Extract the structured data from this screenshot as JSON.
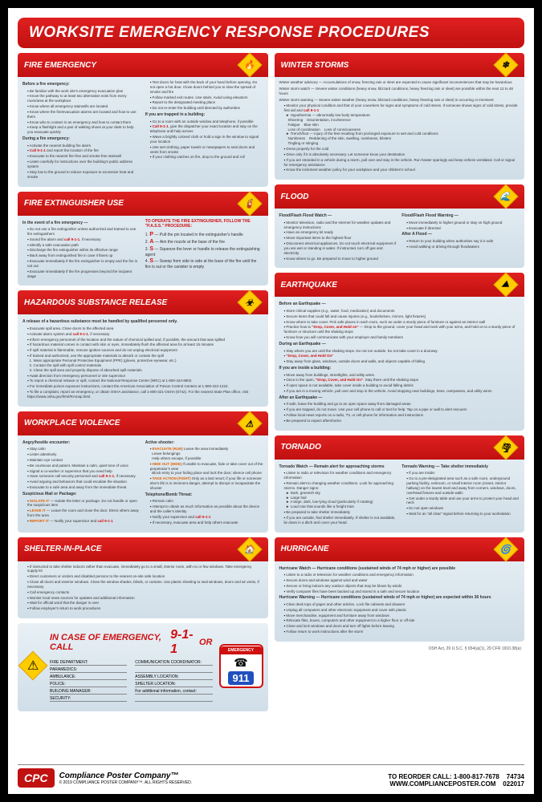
{
  "title": "WORKSITE EMERGENCY RESPONSE PROCEDURES",
  "sections_left": [
    {
      "title": "FIRE EMERGENCY",
      "icon": "🔥",
      "cols": [
        {
          "subhead": "Before a fire emergency:",
          "items": [
            "Be familiar with the work site's emergency evacuation plan",
            "Know the pathway to at least two alternative exits from every room/area at the workplace",
            "Know where all emergency stairwells are located",
            "Know where the fire/evacuation alarms are located and how to use them",
            "Know who to contact in an emergency and how to contact them",
            "Keep a flashlight and a pair of walking shoes at your desk to help you evacuate quickly"
          ],
          "subhead2": "During a fire emergency:",
          "items2": [
            "Activate the nearest building fire alarm",
            "<span class='red'>Call 9-1-1</span> and report the location of the fire",
            "Evacuate to the nearest fire-free and smoke-free stairwell",
            "Listen carefully for instructions over the building's public address system",
            "Stay low to the ground to reduce exposure to excessive heat and smoke"
          ]
        },
        {
          "items": [
            "Test doors for heat with the back of your hand before opening. Do not open a hot door. Close doors behind you to slow the spread of smoke and fire",
            "Follow marked exit routes. Use stairs. Avoid using elevators",
            "Report to the designated meeting place",
            "Do not re-enter the building until directed by authorities"
          ],
          "subhead2": "If you are trapped in a building:",
          "items2": [
            "Go to a room with an outside window and telephone, if possible",
            "<span class='red'>Call 9-1-1</span>, give the dispatcher your exact location and stay on the telephone until help arrives",
            "Wave a brightly colored cloth or hold a sign in the window to signal your location",
            "Use wet clothing, paper towels or newspapers to seal doors and vents from smoke",
            "If your clothing catches on fire, drop to the ground and roll"
          ]
        }
      ]
    },
    {
      "title": "FIRE EXTINGUISHER USE",
      "icon": "🧯",
      "cols": [
        {
          "subhead": "In the event of a fire emergency —",
          "items": [
            "Do not use a fire extinguisher unless authorized and trained to use fire extinguishers",
            "Sound fire alarm and <span class='red'>call 9-1-1</span>, if necessary",
            "Identify a safe evacuation path",
            "Discharge the fire extinguisher within its effective range",
            "Back away from extinguished fire in case it flares up",
            "Evacuate immediately if the fire extinguisher is empty and the fire is not out",
            "Evacuate immediately if the fire progresses beyond the incipient stage"
          ]
        },
        {
          "pass_heading": "TO OPERATE THE FIRE EXTINGUISHER, FOLLOW THE \"P.A.S.S.\" PROCEDURE:",
          "pass": [
            {
              "l": "P",
              "t": "— Pull the pin located in the extinguisher's handle"
            },
            {
              "l": "A",
              "t": "— Aim the nozzle at the base of the fire"
            },
            {
              "l": "S",
              "t": "— Squeeze the lever or handle to release the extinguishing agent"
            },
            {
              "l": "S",
              "t": "— Sweep from side to side at the base of the fire until the fire is out or the canister is empty"
            }
          ]
        }
      ]
    },
    {
      "title": "HAZARDOUS SUBSTANCE RELEASE",
      "icon": "☣",
      "body": {
        "subhead": "A release of a hazardous substance must be handled by qualified personnel only.",
        "items": [
          "Evacuate spill area. Close doors to the affected area",
          "Activate alarm system and <span class='red'>call 9-1-1</span>, if necessary",
          "Inform emergency personnel of the location and the nature of chemical spilled and, if possible, the amount that was spilled",
          "If hazardous material comes in contact with skin or eyes, immediately flush the affected area for at least 15 minutes",
          "If spill material is flammable, remove ignition sources and do not unplug electrical equipment",
          "If trained and authorized, use the appropriate materials to absorb or contain the spill<br>&nbsp;&nbsp;1. Wear appropriate Personal Protective Equipment (PPE) (gloves, protective eyewear, etc.)<br>&nbsp;&nbsp;2. Contain the spill with spill control materials<br>&nbsp;&nbsp;3. Clean the spill area and properly dispose of absorbed spill materials",
          "Await direction from emergency personnel or site supervisor",
          "To report a chemical release or spill, contact the National Response Center (NRC) at 1-800-424-8802.",
          "For immediate poison exposure instructions, contact the American Association of Poison Control Centers at 1-800-222-1222.",
          "To file a complaint, report an emergency, or obtain OSHA assistance, call 1-800-321-OSHA (6742). For the nearest State Plan office, visit https://www.osha.gov/html/RAmap.html."
        ]
      }
    },
    {
      "title": "WORKPLACE VIOLENCE",
      "icon": "⚠",
      "cols": [
        {
          "subhead": "Angry/hostile encounter:",
          "items": [
            "Stay calm",
            "Listen attentively",
            "Maintain eye contact",
            "Be courteous and patient. Maintain a calm, quiet tone of voice",
            "Signal a co-worker or supervisor that you need help",
            "Have someone call security personnel and <span class='red'>call 9-1-1</span>, if necessary",
            "Avoid arguing and behaviors that could escalate the situation",
            "Evacuate to a safe area and away from the immediate threat"
          ],
          "subhead2": "Suspicious Mail or Package:",
          "items2": [
            "<span class='orange'>ISOLATE IT</span> — Isolate the letter or package. Do not handle or open the suspicious item",
            "<span class='orange'>LEAVE IT</span> — Leave the room and close the door. Direct others away from the area",
            "<span class='orange'>REPORT IT</span> — Notify your supervisor and <span class='red'>call 9-1-1</span>"
          ]
        },
        {
          "subhead": "Active shooter:",
          "items": [
            "<span class='orange'>EVACUATE (RUN)</span> Leave the area immediately<br>&nbsp;&nbsp;Leave belongings<br>&nbsp;&nbsp;Help others escape, if possible",
            "<span class='orange'>HIDE OUT (HIDE)</span> If unable to evacuate, hide or take cover out of the perpetrator's view<br>&nbsp;&nbsp;Block entry to your hiding place and lock the door; silence cell phone",
            "<span class='orange'>TAKE ACTION (FIGHT)</span> Only as a last resort; if your life or someone else's life is in imminent danger, attempt to disrupt or incapacitate the shooter"
          ],
          "subhead2": "Telephone/Bomb Threat:",
          "items2": [
            "Remain calm",
            "Attempt to obtain as much information as possible about the device and the caller's identity",
            "Notify your supervisor and <span class='red'>call 9-1-1</span>",
            "If necessary, evacuate area and help others evacuate"
          ]
        }
      ]
    },
    {
      "title": "SHELTER-IN-PLACE",
      "icon": "🏠",
      "body": {
        "items": [
          "If instructed to take shelter indoors rather than evacuate, immediately go to a small, interior room, with no or few windows. Take emergency supply kit",
          "Direct customers or visitors and disabled persons to the nearest on-site safe location",
          "Close all doors and exterior windows. Close the window shades, blinds, or curtains. Use plastic sheeting to seal windows, doors and air vents, if necessary",
          "Call emergency contacts",
          "Monitor local news sources for updates and additional information",
          "Wait for official word that the danger is over",
          "Follow employer's return to work procedures"
        ]
      }
    }
  ],
  "sections_right": [
    {
      "title": "WINTER STORMS",
      "icon": "❄",
      "body": {
        "items_pre": [
          "Winter weather advisory — Accumulations of snow, freezing rain or sleet are expected to cause significant inconveniences that may be hazardous",
          "Winter storm watch — Severe winter conditions (heavy snow, blizzard conditions, heavy freezing rain or sleet) are possible within the next 12 to 48 hours",
          "Winter storm warning — Severe winter weather (heavy snow, blizzard conditions, heavy freezing rain or sleet) is occurring or imminent"
        ],
        "items": [
          "Monitor your physical condition and that of your coworkers for signs and symptoms of cold stress. If someone shows signs of cold stress, provide first aid and <span class='red'>call 9-1-1</span><br>&nbsp;&nbsp;► Hypothermia — abnormally low body temperature<br>&nbsp;&nbsp;&nbsp;&nbsp;Shivering &nbsp;&nbsp; Disorientation, incoherence<br>&nbsp;&nbsp;&nbsp;&nbsp;Fatigue &nbsp;&nbsp; Blue skin<br>&nbsp;&nbsp;&nbsp;&nbsp;Loss of coordination &nbsp;&nbsp; Loss of consciousness<br>&nbsp;&nbsp;► Trench/foot — injury of the feet resulting from prolonged exposure to wet and cold conditions<br>&nbsp;&nbsp;&nbsp;&nbsp;Numbness &nbsp;&nbsp; Reddening of the skin, swelling, numbness, blisters<br>&nbsp;&nbsp;&nbsp;&nbsp;Tingling or stinging",
          "Dress properly for the cold",
          "Drive only if it is absolutely necessary. Let someone know your destination",
          "If you are stranded in a vehicle during a storm, pull over and stay in the vehicle. Run heater sparingly and keep vehicle ventilated. Call or signal for emergency assistance",
          "Know the inclement weather policy for your workplace and your children's school"
        ]
      }
    },
    {
      "title": "FLOOD",
      "icon": "🌊",
      "cols": [
        {
          "subhead": "Flood/Flash Flood Watch —",
          "items": [
            "Monitor television, radio and the Internet for weather updates and emergency instructions",
            "Have an emergency kit ready",
            "Move important items to the highest floor",
            "Disconnect electrical appliances. Do not touch electrical equipment if you are wet or standing in water. If instructed, turn off gas and electricity",
            "Know where to go. Be prepared to move to higher ground"
          ]
        },
        {
          "subhead": "Flood/Flash Flood Warning —",
          "items": [
            "Move immediately to higher ground or stay on high ground",
            "Evacuate if directed"
          ],
          "subhead2": "After A Flood —",
          "items2": [
            "Return to your building when authorities say it is safe",
            "Avoid walking or driving through floodwaters"
          ]
        }
      ]
    },
    {
      "title": "EARTHQUAKE",
      "icon": "⛰",
      "body": {
        "subhead": "Before an Earthquake —",
        "items": [
          "Store critical supplies (e.g., water, food, medication) and documents",
          "Secure items that could fall and cause injuries (e.g., bookshelves, mirrors, light fixtures)",
          "Know where to take cover. Pick safe places in each room, such as under a sturdy piece of furniture or against an interior wall",
          "Practice how to <span class='red'>\"Drop, Cover, and Hold on\"</span> — Drop to the ground, cover your head and neck with your arms, and hold on to a sturdy piece of furniture or structure until the shaking stops",
          "Know how you will communicate with your employer and family members"
        ],
        "subhead2": "During an Earthquake —",
        "items2": [
          "Stay where you are until the shaking stops. Do not run outside. Do not take cover in a doorway",
          "<span class='red'>\"Drop, Cover, and Hold On\"</span>",
          "Stay away from glass, windows, outside doors and walls, and objects capable of falling"
        ],
        "subhead3": "If you are inside a building:",
        "items3": [
          "Move away from buildings, streetlights, and utility wires",
          "Once in the open, <span class='red'>\"Drop, Cover, and Hold On\"</span>. Stay there until the shaking stops",
          "If open space is not available, take cover inside a building to avoid falling debris",
          "If you are in a moving vehicle, pull over and stop in the vehicle. Avoid stopping near buildings, trees, overpasses, and utility wires"
        ],
        "subhead4": "After an Earthquake —",
        "items4": [
          "If safe, leave the building and go to an open space away from damaged areas",
          "If you are trapped, do not move. Use your cell phone to call or text for help. Tap on a pipe or wall to alert rescuers",
          "Follow local news reports on a radio, TV, or cell phone for information and instructions",
          "Be prepared to expect aftershocks"
        ]
      }
    },
    {
      "title": "TORNADO",
      "icon": "🌪",
      "cols": [
        {
          "subhead": "Tornado Watch — Remain alert for approaching storms",
          "items": [
            "Listen to radio or television for weather conditions and emergency information",
            "Remain alert to changing weather conditions. Look for approaching storms. Danger signs:<br>&nbsp;&nbsp;► Dark, greenish sky<br>&nbsp;&nbsp;► Large hail<br>&nbsp;&nbsp;► A large, dark, low-lying cloud (particularly if rotating)<br>&nbsp;&nbsp;► Loud roar that sounds like a freight train",
            "Be prepared to take shelter immediately",
            "If you are outside, find shelter immediately. If shelter is not available, lie down in a ditch and cover your head."
          ]
        },
        {
          "subhead": "Tornado Warning — Take shelter immediately",
          "items": [
            "If you are inside:",
            "Go to a pre-designated area such as a safe room, underground parking facility, restroom, or small interior room (closet, interior hallway) on the lowest level and away from corners, windows, doors, overhead fixtures and outside walls",
            "Get under a sturdy table and use your arms to protect your head and neck",
            "Do not open windows",
            "Wait for an \"all clear\" signal before returning to your workstation"
          ]
        }
      ]
    },
    {
      "title": "HURRICANE",
      "icon": "🌀",
      "body": {
        "subhead": "Hurricane Watch — Hurricane conditions (sustained winds of 74 mph or higher) are possible",
        "items": [
          "Listen to a radio or television for weather conditions and emergency information",
          "Secure doors and windows against wind and water",
          "Secure or bring indoors any outdoor objects that may be blown by winds",
          "Verify computer files have been backed up and stored in a safe and secure location"
        ],
        "subhead2": "Hurricane Warning — Hurricane conditions (sustained winds of 74 mph or higher) are expected within 36 hours",
        "items2": [
          "Clear desk tops of paper and other articles. Lock file cabinets and drawers",
          "Unplug all computers and other electronic equipment and cover with plastic",
          "Move merchandise, equipment and furniture away from windows",
          "Relocate files, boxes, computers and other equipment to a higher floor or off-site",
          "Close and lock windows and doors and turn off lights before leaving",
          "Follow return to work instructions after the storm"
        ]
      }
    }
  ],
  "emergency": {
    "call_text": "IN CASE OF EMERGENCY, CALL",
    "number": "9-1-1",
    "or": "OR",
    "badge_top": "EMERGENCY",
    "badge_num": "911",
    "fields": [
      [
        "FIRE DEPARTMENT:",
        "COMMUNICATION COORDINATOR:"
      ],
      [
        "PARAMEDICS:",
        ""
      ],
      [
        "AMBULANCE:",
        "ASSEMBLY LOCATION:"
      ],
      [
        "POLICE:",
        "SHELTER LOCATION:"
      ],
      [
        "BUILDING MANAGER:",
        "For additional information, contact:"
      ],
      [
        "SECURITY:",
        ""
      ]
    ]
  },
  "citation": "OSH Act, 29 U.S.C. § 654(a)(1), 29 CFR 1910.38(a)",
  "footer": {
    "logo": "CPC",
    "company": "Compliance Poster Company™",
    "copyright": "© 2019 COMPLIANCE POSTER COMPANY™. ALL RIGHTS RESERVED.",
    "reorder": "TO REORDER CALL: 1-800-817-7678",
    "web": "WWW.COMPLIANCEPOSTER.COM",
    "code1": "74734",
    "code2": "022017"
  }
}
